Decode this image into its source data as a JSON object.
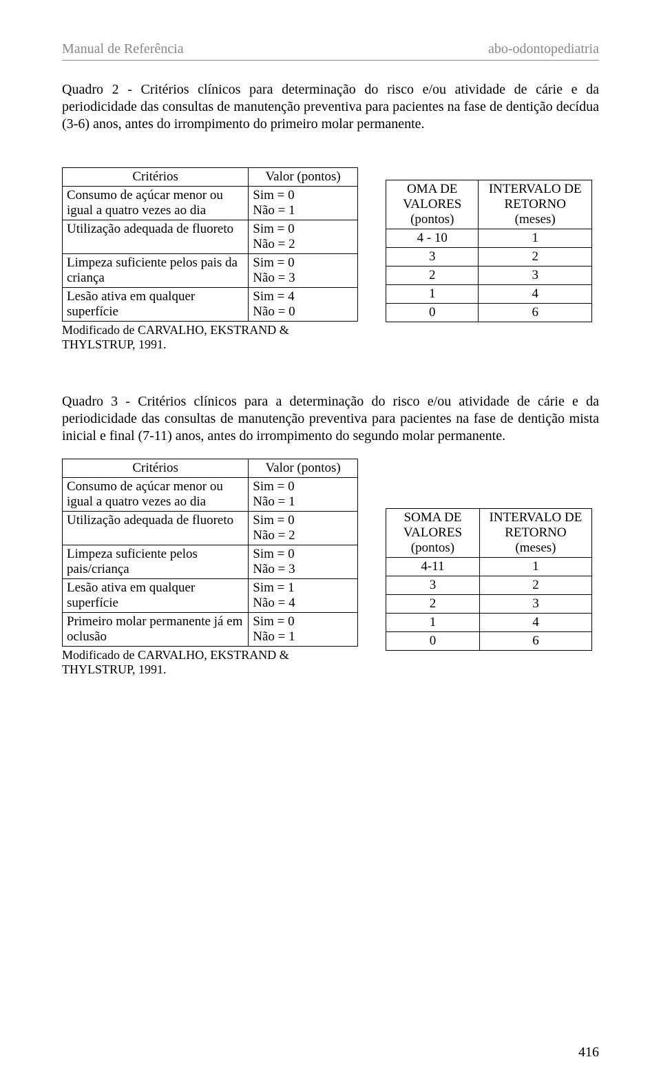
{
  "header": {
    "left": "Manual de Referência",
    "right": "abo-odontopediatria"
  },
  "quadro2": {
    "title": "Quadro 2 - Critérios clínicos para determinação do risco e/ou atividade de cárie e da periodicidade das consultas de manutenção preventiva para pacientes na fase de dentição decídua (3-6) anos, antes do irrompimento do primeiro molar permanente.",
    "crit_header_left": "Critérios",
    "crit_header_right": "Valor (pontos)",
    "rows": [
      {
        "label": " Consumo de açúcar menor ou igual a quatro vezes ao dia",
        "val": "Sim = 0\nNão = 1"
      },
      {
        "label": "Utilização adequada de fluoreto",
        "val": "Sim = 0\nNão = 2"
      },
      {
        "label": "Limpeza suficiente pelos pais da criança",
        "val": "Sim = 0\nNão = 3"
      },
      {
        "label": "Lesão ativa em qualquer superfície",
        "val": "Sim = 4\nNão = 0"
      }
    ],
    "footnote": "Modificado de CARVALHO, EKSTRAND & THYLSTRUP, 1991.",
    "ret_header_left": "OMA DE VALORES (pontos)",
    "ret_header_right": "INTERVALO DE RETORNO (meses)",
    "ret_rows": [
      {
        "a": "4 - 10",
        "b": "1"
      },
      {
        "a": "3",
        "b": "2"
      },
      {
        "a": "2",
        "b": "3"
      },
      {
        "a": "1",
        "b": "4"
      },
      {
        "a": "0",
        "b": "6"
      }
    ]
  },
  "quadro3": {
    "title": "Quadro 3 - Critérios clínicos para a determinação do risco e/ou atividade de cárie e da periodicidade das consultas de manutenção preventiva para pacientes na fase de dentição mista inicial e final (7-11) anos, antes do irrompimento do segundo molar permanente.",
    "crit_header_left": "Critérios",
    "crit_header_right": "Valor (pontos)",
    "rows": [
      {
        "label": "Consumo de açúcar menor ou igual a quatro vezes ao dia",
        "val": "Sim = 0\nNão = 1"
      },
      {
        "label": "Utilização adequada de fluoreto",
        "val": "Sim = 0\nNão = 2"
      },
      {
        "label": "Limpeza suficiente pelos pais/criança",
        "val": "Sim = 0\nNão = 3"
      },
      {
        "label": "Lesão ativa em qualquer superfície",
        "val": "Sim = 1\nNão = 4"
      },
      {
        "label": "Primeiro molar permanente já em oclusão",
        "val": "Sim = 0\nNão = 1"
      }
    ],
    "footnote": "Modificado de CARVALHO, EKSTRAND & THYLSTRUP, 1991.",
    "ret_header_left": "SOMA DE VALORES (pontos)",
    "ret_header_right": "INTERVALO DE RETORNO (meses)",
    "ret_rows": [
      {
        "a": "4-11",
        "b": "1"
      },
      {
        "a": "3",
        "b": "2"
      },
      {
        "a": "2",
        "b": "3"
      },
      {
        "a": "1",
        "b": "4"
      },
      {
        "a": "0",
        "b": "6"
      }
    ]
  },
  "page_number": "416",
  "style": {
    "font_family": "Times New Roman",
    "body_fontsize_pt": 15,
    "header_color": "#888888",
    "text_color": "#000000",
    "border_color": "#000000",
    "background": "#ffffff"
  }
}
